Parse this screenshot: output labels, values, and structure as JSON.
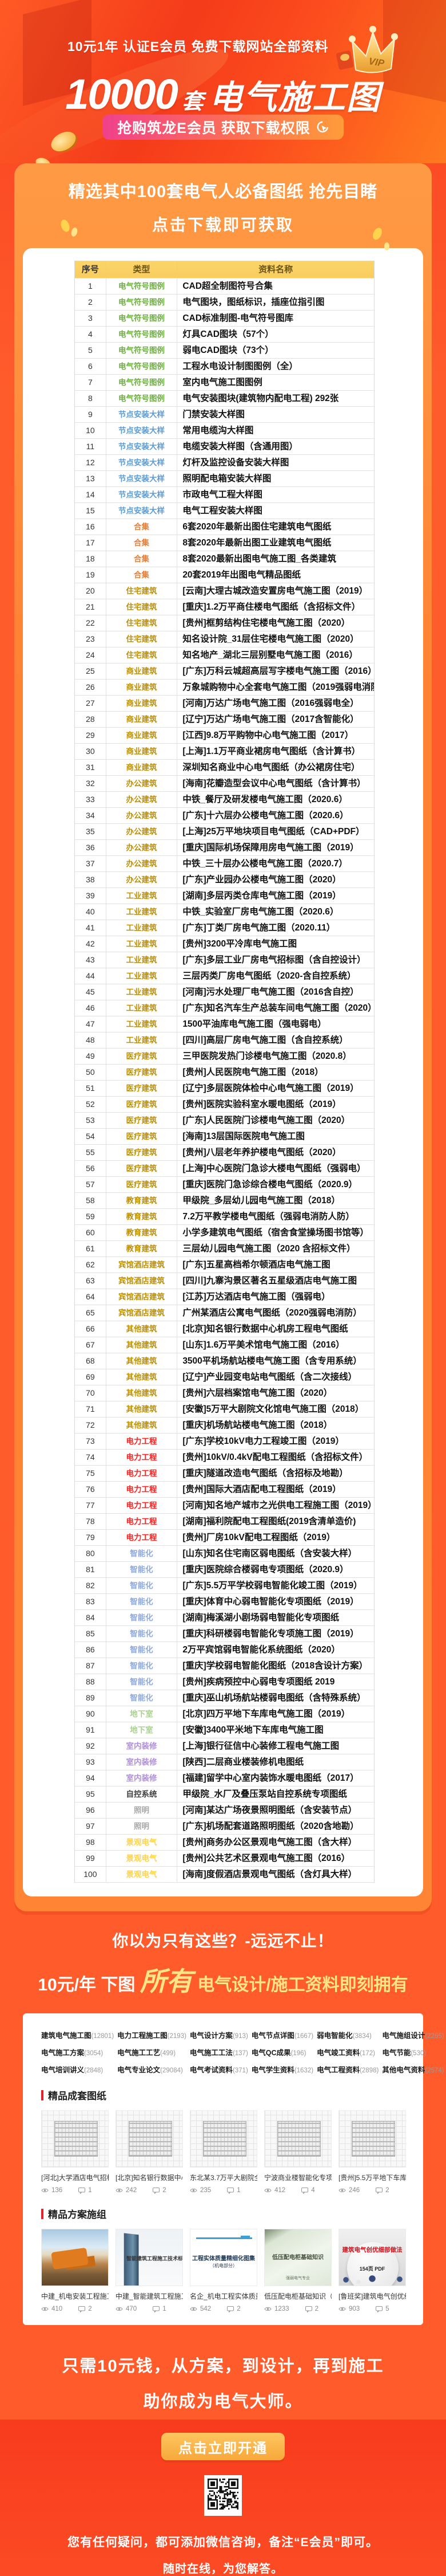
{
  "hero": {
    "promo": "10元1年  认证E会员  免费下载网站全部资料",
    "title_number": "10000",
    "title_unit": "套",
    "title_text": "电气施工图",
    "cta": "抢购筑龙E会员  获取下载权限",
    "crown_label": "VIP"
  },
  "panel": {
    "heading1": "精选其中100套电气人必备图纸 抢先目睹",
    "heading2": "点击下载即可获取"
  },
  "table": {
    "columns": [
      "序号",
      "类型",
      "资料名称"
    ],
    "type_colors": {
      "电气符号图例": "#70AD47",
      "节点安装大样": "#5B9BD5",
      "合集": "#ED7D31",
      "住宅建筑": "#BF9000",
      "商业建筑": "#BF9000",
      "办公建筑": "#BF9000",
      "工业建筑": "#BF9000",
      "医疗建筑": "#BF9000",
      "教育建筑": "#BF9000",
      "宾馆酒店建筑": "#BF9000",
      "其他建筑": "#BF9000",
      "电力工程": "#FF2020",
      "智能化": "#8FAADC",
      "地下室": "#A9D18E",
      "室内装修": "#B18FDB",
      "自控系统": "#3F3F3F",
      "照明": "#A8A8A8",
      "景观电气": "#FFD34D"
    },
    "rows": [
      [
        "电气符号图例",
        "CAD超全制图符号合集"
      ],
      [
        "电气符号图例",
        "电气图块，图纸标识，插座位指引图"
      ],
      [
        "电气符号图例",
        "CAD标准制图-电气符号图库"
      ],
      [
        "电气符号图例",
        "灯具CAD图块（57个）"
      ],
      [
        "电气符号图例",
        "弱电CAD图块（73个）"
      ],
      [
        "电气符号图例",
        "工程水电设计制图图例（全）"
      ],
      [
        "电气符号图例",
        "室内电气施工图图例"
      ],
      [
        "电气符号图例",
        "电气安装图块(建筑物内配电工程) 292张"
      ],
      [
        "节点安装大样",
        "门禁安装大样图"
      ],
      [
        "节点安装大样",
        "常用电缆沟大样图"
      ],
      [
        "节点安装大样",
        "电缆安装大样图（含通用图）"
      ],
      [
        "节点安装大样",
        "灯杆及监控设备安装大样图"
      ],
      [
        "节点安装大样",
        "照明配电箱安装大样图"
      ],
      [
        "节点安装大样",
        "市政电气工程大样图"
      ],
      [
        "节点安装大样",
        "电气工程安装大样图"
      ],
      [
        "合集",
        "6套2020年最新出图住宅建筑电气图纸"
      ],
      [
        "合集",
        "8套2020年最新出图工业建筑电气图纸"
      ],
      [
        "合集",
        "8套2020最新出图电气施工图_各类建筑"
      ],
      [
        "合集",
        "20套2019年出图电气精品图纸"
      ],
      [
        "住宅建筑",
        "[云南]大理古城改造安置房电气施工图（2019）"
      ],
      [
        "住宅建筑",
        "[重庆]1.2万平商住楼电气图纸（含招标文件）"
      ],
      [
        "住宅建筑",
        "[贵州]框剪结构住宅楼电气施工图（2020）"
      ],
      [
        "住宅建筑",
        "知名设计院_31层住宅楼电气施工图（2020）"
      ],
      [
        "住宅建筑",
        "知名地产_湖北三层别墅电气施工图（2016）"
      ],
      [
        "商业建筑",
        "[广东]万科云城超高层写字楼电气施工图（2016）"
      ],
      [
        "商业建筑",
        "万象城购物中心全套电气施工图（2019强弱电消防）"
      ],
      [
        "商业建筑",
        "[河南]万达广场电气施工图（2016强弱电全）"
      ],
      [
        "商业建筑",
        "[辽宁]万达广场电气施工图（2017含智能化）"
      ],
      [
        "商业建筑",
        "[江西]9.8万平购物中心电气施工图（2017）"
      ],
      [
        "商业建筑",
        "[上海]1.1万平商业裙房电气图纸（含计算书）"
      ],
      [
        "商业建筑",
        "深圳知名商业中心电气图纸（办公裙房住宅）"
      ],
      [
        "办公建筑",
        "[海南]花瓣造型会议中心电气图纸（含计算书）"
      ],
      [
        "办公建筑",
        "中铁_餐厅及研发楼电气施工图（2020.6）"
      ],
      [
        "办公建筑",
        "[广东]十六层办公楼电气施工图（2020.6）"
      ],
      [
        "办公建筑",
        "[上海]25万平地块项目电气图纸（CAD+PDF）"
      ],
      [
        "办公建筑",
        "[重庆]国际机场保障用房电气施工图（2019）"
      ],
      [
        "办公建筑",
        "中铁_三十层办公楼电气施工图（2020.7）"
      ],
      [
        "办公建筑",
        "[广东]产业园办公楼电气施工图（2020）"
      ],
      [
        "工业建筑",
        "[湖南]多层丙类仓库电气施工图（2019）"
      ],
      [
        "工业建筑",
        "中铁_实验室厂房电气施工图（2020.6）"
      ],
      [
        "工业建筑",
        "[广东]丁类厂房电气施工图（2020.11）"
      ],
      [
        "工业建筑",
        "[贵州]3200平冷库电气施工图"
      ],
      [
        "工业建筑",
        "[广东]多层工业厂房电气招标图（含自控设计）"
      ],
      [
        "工业建筑",
        "三层丙类厂房电气图纸（2020-含自控系统）"
      ],
      [
        "工业建筑",
        "[河南]污水处理厂电气施工图（2016含自控）"
      ],
      [
        "工业建筑",
        "[广东]知名汽车生产总装车间电气施工图（2020）"
      ],
      [
        "工业建筑",
        "1500平油库电气施工图（强电弱电）"
      ],
      [
        "工业建筑",
        "[四川]高层厂房电气施工图（含自控系统）"
      ],
      [
        "医疗建筑",
        "三甲医院发热门诊楼电气施工图（2020.8）"
      ],
      [
        "医疗建筑",
        "[贵州]人民医院电气施工图（2018）"
      ],
      [
        "医疗建筑",
        "[辽宁]多层医院体检中心电气施工图（2019）"
      ],
      [
        "医疗建筑",
        "[贵州]医院实验科室水暖电图纸（2019）"
      ],
      [
        "医疗建筑",
        "[广东]人民医院门诊楼电气施工图（2020）"
      ],
      [
        "医疗建筑",
        "[海南]13层国际医院电气施工图"
      ],
      [
        "医疗建筑",
        "[贵州]八层老年养护楼电气图纸（2020）"
      ],
      [
        "医疗建筑",
        "[上海]中心医院门急诊大楼电气图纸（强弱电）"
      ],
      [
        "医疗建筑",
        "[重庆]医院门急诊综合楼电气图纸（2020.9）"
      ],
      [
        "教育建筑",
        "甲级院_多层幼儿园电气施工图（2018）"
      ],
      [
        "教育建筑",
        "7.2万平教学楼电气图纸（强弱电消防人防）"
      ],
      [
        "教育建筑",
        "小学多建筑电气图纸（宿舍食堂操场图书馆等）"
      ],
      [
        "教育建筑",
        "三层幼儿园电气施工图（2020 含招标文件）"
      ],
      [
        "宾馆酒店建筑",
        "[广东]五星高档希尔顿酒店电气施工图"
      ],
      [
        "宾馆酒店建筑",
        "[四川]九寨沟景区著名五星级酒店电气施工图"
      ],
      [
        "宾馆酒店建筑",
        "[江苏]万达酒店电气施工图（强弱电）"
      ],
      [
        "宾馆酒店建筑",
        "广州某酒店公寓电气图纸（2020强弱电消防）"
      ],
      [
        "其他建筑",
        "[北京]知名银行数据中心机房工程电气图纸"
      ],
      [
        "其他建筑",
        "[山东]1.6万平美术馆电气施工图（2016）"
      ],
      [
        "其他建筑",
        "3500平机场航站楼电气施工图（含专用系统）"
      ],
      [
        "其他建筑",
        "[辽宁]产业园变电站电气图纸（含二次接线）"
      ],
      [
        "其他建筑",
        "[贵州]六层档案馆电气施工图（2020）"
      ],
      [
        "其他建筑",
        "[安徽]5万平大剧院文化馆电气施工图（2018）"
      ],
      [
        "其他建筑",
        "[重庆]机场航站楼电气施工图（2018）"
      ],
      [
        "电力工程",
        "[广东]学校10kV电力工程竣工图（2019）"
      ],
      [
        "电力工程",
        "[贵州]10kV/0.4kV配电工程图纸（含招标文件）"
      ],
      [
        "电力工程",
        "[重庆]隧道改造电气图纸（含招标及地勘）"
      ],
      [
        "电力工程",
        "[贵州]国际大酒店配电工程图纸（2019）"
      ],
      [
        "电力工程",
        "[河南]知名地产城市之光供电工程施工图（2019）"
      ],
      [
        "电力工程",
        "[湖南]福利院配电工程图纸(2019含清单造价)"
      ],
      [
        "电力工程",
        "[贵州]厂房10kV配电工程图纸（2019）"
      ],
      [
        "智能化",
        "[山东]知名住宅南区弱电图纸（含安装大样）"
      ],
      [
        "智能化",
        "[重庆]医院综合楼弱电专项图纸（2020.9）"
      ],
      [
        "智能化",
        "[广东]5.5万平学校弱电智能化竣工图（2019）"
      ],
      [
        "智能化",
        "[重庆]体育中心弱电智能化专项图纸（2019）"
      ],
      [
        "智能化",
        "[湖南]梅溪湖小剧场弱电智能化专项图纸"
      ],
      [
        "智能化",
        "[重庆]科研楼弱电智能化专项施工图（2019）"
      ],
      [
        "智能化",
        "2万平宾馆弱电智能化系统图纸（2020）"
      ],
      [
        "智能化",
        "[重庆]学校弱电智能化图纸（2018含设计方案）"
      ],
      [
        "智能化",
        "[贵州]疾病预控中心弱电专项图纸 2019"
      ],
      [
        "智能化",
        "[重庆]巫山机场航站楼弱电图纸（含特殊系统）"
      ],
      [
        "地下室",
        "[北京]四万平地下车库电气施工图（2019）"
      ],
      [
        "地下室",
        "[安徽]3400平米地下车库电气施工图"
      ],
      [
        "室内装修",
        "[上海]银行征信中心装修工程电气施工图"
      ],
      [
        "室内装修",
        "[陕西]二层商业楼装修机电图纸"
      ],
      [
        "室内装修",
        "[福建]留学中心室内装饰水暖电图纸（2017）"
      ],
      [
        "自控系统",
        "甲级院_水厂及叠压泵站自控系统专项图纸"
      ],
      [
        "照明",
        "[河南]某达广场夜景照明图纸（含安装节点）"
      ],
      [
        "照明",
        "[广东]机场配套道路照明图纸（2020含地勘）"
      ],
      [
        "景观电气",
        "[贵州]商务办公区景观电气施工图（含大样）"
      ],
      [
        "景观电气",
        "[贵州]公共艺术区景观电气施工图（2016）"
      ],
      [
        "景观电气",
        "[海南]度假酒店景观电气图纸（含灯具大样）"
      ]
    ]
  },
  "more": {
    "line1": "你以为只有这些？-远远不止！",
    "line2_prefix": "10元/年 下图",
    "line2_highlight": "所有",
    "line2_suffix": "电气设计/施工资料即刻拥有"
  },
  "resources": {
    "links": [
      {
        "label": "建筑电气施工图",
        "count": "12801"
      },
      {
        "label": "电力工程施工图",
        "count": "2193"
      },
      {
        "label": "电气设计方案",
        "count": "913"
      },
      {
        "label": "电气节点详图",
        "count": "1667"
      },
      {
        "label": "弱电智能化",
        "count": "3834"
      },
      {
        "label": "电气施组设计",
        "count": "2265"
      },
      {
        "label": "电气施工方案",
        "count": "3054"
      },
      {
        "label": "电气施工工艺",
        "count": "499"
      },
      {
        "label": "电气施工工法",
        "count": "137"
      },
      {
        "label": "电气QC成果",
        "count": "196"
      },
      {
        "label": "电气竣工资料",
        "count": "172"
      },
      {
        "label": "电气节能",
        "count": "530"
      },
      {
        "label": "电气培训讲义",
        "count": "2848"
      },
      {
        "label": "电气专业论文",
        "count": "29084"
      },
      {
        "label": "电气考试资料",
        "count": "371"
      },
      {
        "label": "电气学生资料",
        "count": "1632"
      },
      {
        "label": "电气工程资料",
        "count": "2898"
      },
      {
        "label": "其他电气资料",
        "count": "2574"
      }
    ]
  },
  "sections": [
    {
      "title": "精品成套图纸",
      "cards": [
        {
          "title": "[河北]大学酒店电气招标图（强...",
          "views": "136",
          "comments": "1",
          "kind": "plan"
        },
        {
          "title": "[北京]知名银行数据中心机房工...",
          "views": "242",
          "comments": "2",
          "kind": "plan"
        },
        {
          "title": "东北某3.7万平大剧院全套电气...",
          "views": "235",
          "comments": "1",
          "kind": "plan"
        },
        {
          "title": "宁波商业楼智能化专项施工图[...",
          "views": "412",
          "comments": "4",
          "kind": "plan"
        },
        {
          "title": "[贵州]5.5万平地下车库电气施工...",
          "views": "246",
          "comments": "2",
          "kind": "plan"
        }
      ]
    },
    {
      "title": "精品方案施组",
      "cards": [
        {
          "title": "中建_机电安装工程施工做法典...",
          "views": "410",
          "comments": "2",
          "kind": "photo-digger"
        },
        {
          "title": "中建_智能建筑工程施工技术标...",
          "views": "470",
          "comments": "1",
          "kind": "photo-tower",
          "cover": "智能建筑工程施工技术标准"
        },
        {
          "title": "名企_机电工程实体质量精细化...",
          "views": "542",
          "comments": "2",
          "kind": "doc",
          "cover": "工程实体质量精细化图集",
          "cover2": "（机电部分）"
        },
        {
          "title": "低压配电柜基础知识（69页PPT）",
          "views": "1233",
          "comments": "2",
          "kind": "ppt",
          "cover": "低压配电柜基础知识",
          "cover2": "强弱电气专业"
        },
        {
          "title": "[鲁班奖]建筑电气创优细部做法",
          "views": "903",
          "comments": "5",
          "kind": "pdf",
          "cover": "建筑电气创优细部做法",
          "cover2": "154页 PDF"
        }
      ]
    }
  ],
  "cta2": {
    "line1": "只需10元钱，从方案，到设计，再到施工",
    "line2": "助你成为电气大师。",
    "button": "点击立即开通"
  },
  "footer": {
    "note1": "您有任何疑问，都可添加微信咨询，备注“E会员”即可。",
    "note2": "随时在线，为您解答。"
  }
}
